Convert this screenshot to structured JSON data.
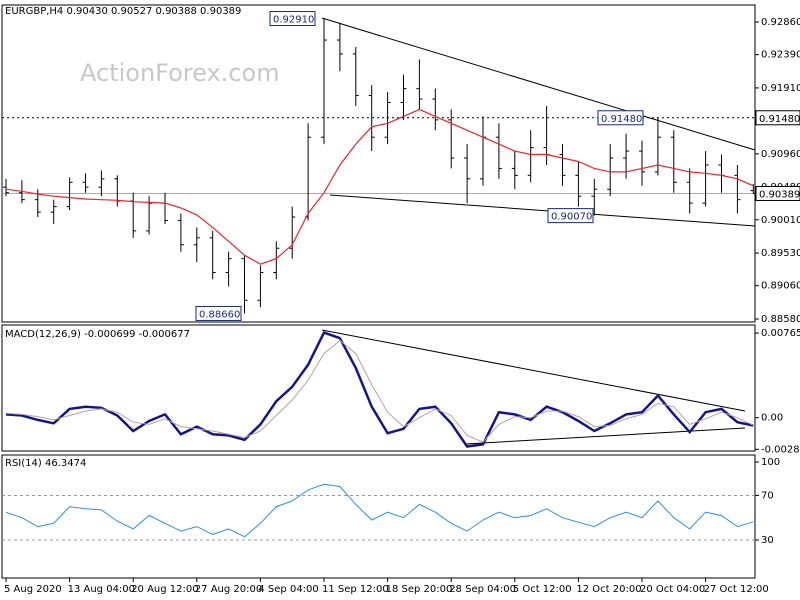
{
  "chart_data": [
    {
      "type": "ohlc",
      "title": "EURGBP,H4 0.90430 0.90527 0.90388 0.90389",
      "watermark": "ActionForex.com",
      "categories": [
        "5 Aug 2020",
        null,
        null,
        null,
        "13 Aug 04:00",
        null,
        null,
        null,
        "20 Aug 12:00",
        null,
        null,
        null,
        "27 Aug 20:00",
        null,
        null,
        null,
        "4 Sep 04:00",
        null,
        null,
        null,
        "11 Sep 12:00",
        null,
        null,
        null,
        "18 Sep 20:00",
        null,
        null,
        null,
        "28 Sep 04:00",
        null,
        null,
        null,
        "5 Oct 12:00",
        null,
        null,
        null,
        "12 Oct 20:00",
        null,
        null,
        null,
        "20 Oct 04:00",
        null,
        null,
        null,
        "27 Oct 12:00",
        null,
        null,
        null
      ],
      "open": [
        0.9048,
        0.904,
        0.903,
        0.9012,
        0.902,
        0.9055,
        0.9048,
        0.906,
        0.9028,
        0.8985,
        0.9025,
        0.9,
        0.8965,
        0.8975,
        0.8925,
        0.8945,
        0.8885,
        0.8925,
        0.896,
        0.9005,
        0.912,
        0.926,
        0.924,
        0.918,
        0.912,
        0.917,
        0.919,
        0.9175,
        0.9145,
        0.909,
        0.906,
        0.912,
        0.9075,
        0.9065,
        0.9105,
        0.9095,
        0.9065,
        0.9035,
        0.9045,
        0.909,
        0.91,
        0.907,
        0.912,
        0.9055,
        0.9025,
        0.908,
        0.9065,
        0.9043
      ],
      "high": [
        0.906,
        0.9058,
        0.9045,
        0.903,
        0.9062,
        0.9068,
        0.9072,
        0.9065,
        0.904,
        0.9035,
        0.904,
        0.901,
        0.899,
        0.8985,
        0.8955,
        0.895,
        0.8935,
        0.897,
        0.902,
        0.914,
        0.9291,
        0.9285,
        0.925,
        0.9195,
        0.9185,
        0.921,
        0.9232,
        0.919,
        0.916,
        0.911,
        0.915,
        0.914,
        0.91,
        0.913,
        0.9165,
        0.911,
        0.9085,
        0.906,
        0.911,
        0.9125,
        0.9115,
        0.9148,
        0.913,
        0.9075,
        0.91,
        0.9095,
        0.908,
        0.90527
      ],
      "low": [
        0.9035,
        0.9025,
        0.9005,
        0.8995,
        0.9015,
        0.904,
        0.9035,
        0.902,
        0.8975,
        0.898,
        0.8995,
        0.8955,
        0.894,
        0.8915,
        0.8905,
        0.8866,
        0.8875,
        0.8915,
        0.8945,
        0.9,
        0.911,
        0.9215,
        0.9165,
        0.91,
        0.911,
        0.9145,
        0.916,
        0.913,
        0.9075,
        0.9025,
        0.905,
        0.906,
        0.9045,
        0.9055,
        0.908,
        0.905,
        0.902,
        0.9007,
        0.9035,
        0.906,
        0.905,
        0.9065,
        0.904,
        0.901,
        0.902,
        0.904,
        0.901,
        0.90388
      ],
      "close": [
        0.904,
        0.903,
        0.9012,
        0.902,
        0.9055,
        0.9048,
        0.906,
        0.9028,
        0.8985,
        0.9025,
        0.9,
        0.8965,
        0.8975,
        0.8925,
        0.8945,
        0.8885,
        0.8925,
        0.896,
        0.9005,
        0.912,
        0.926,
        0.924,
        0.918,
        0.912,
        0.917,
        0.919,
        0.9175,
        0.9145,
        0.909,
        0.906,
        0.912,
        0.9075,
        0.9065,
        0.9105,
        0.9095,
        0.9065,
        0.9035,
        0.9045,
        0.909,
        0.91,
        0.907,
        0.912,
        0.9055,
        0.9025,
        0.908,
        0.9065,
        0.903,
        0.90389
      ],
      "bar_color": "#000000",
      "series": [
        {
          "color": "#e8262b",
          "values": [
            0.9045,
            0.9042,
            0.9038,
            0.9035,
            0.9033,
            0.9031,
            0.903,
            0.9029,
            0.9027,
            0.9026,
            0.9025,
            0.9018,
            0.9008,
            0.899,
            0.897,
            0.895,
            0.8937,
            0.8945,
            0.8965,
            0.901,
            0.904,
            0.908,
            0.911,
            0.9135,
            0.914,
            0.915,
            0.916,
            0.915,
            0.914,
            0.913,
            0.912,
            0.911,
            0.91,
            0.9095,
            0.9095,
            0.909,
            0.9085,
            0.9075,
            0.907,
            0.907,
            0.9075,
            0.908,
            0.9075,
            0.907,
            0.9068,
            0.9065,
            0.906,
            0.905
          ]
        }
      ],
      "ylim": [
        0.88537,
        0.93105
      ],
      "yticks": [
        {
          "value": 0.9286,
          "label": "0.92860"
        },
        {
          "value": 0.9239,
          "label": "0.92390"
        },
        {
          "value": 0.9191,
          "label": "0.91910"
        },
        {
          "value": 0.9144,
          "label": "0.91440"
        },
        {
          "value": 0.9096,
          "label": "0.90960"
        },
        {
          "value": 0.9048,
          "label": "0.90480"
        },
        {
          "value": 0.9001,
          "label": "0.90010"
        },
        {
          "value": 0.8953,
          "label": "0.89530"
        },
        {
          "value": 0.8906,
          "label": "0.89060"
        },
        {
          "value": 0.8858,
          "label": "0.88580"
        }
      ],
      "last_price": {
        "value": 0.90389,
        "label": "0.90389"
      },
      "level": {
        "value": 0.9148,
        "label": "0.91480"
      },
      "annotations": [
        {
          "value": 0.9291,
          "label": "0.92910"
        },
        {
          "value": 0.9148,
          "label": "0.91480"
        },
        {
          "value": 0.9007,
          "label": "0.90070"
        },
        {
          "value": 0.8866,
          "label": "0.88660"
        }
      ]
    },
    {
      "type": "line",
      "title": "MACD(12,26,9) -0.000699 -0.000677",
      "series": [
        {
          "color": "#15158a",
          "values": [
            0.0003,
            0.0002,
            -0.0002,
            -0.0005,
            0.0008,
            0.001,
            0.0009,
            0.0002,
            -0.0012,
            -0.0003,
            0.0003,
            -0.0015,
            -0.0008,
            -0.0015,
            -0.0016,
            -0.002,
            -0.0006,
            0.0015,
            0.0028,
            0.0048,
            0.0077,
            0.0072,
            0.0045,
            0.001,
            -0.0014,
            -0.001,
            0.0008,
            0.001,
            -0.0005,
            -0.0026,
            -0.0024,
            0.0005,
            0.0003,
            -0.0002,
            0.001,
            0.0005,
            -0.0003,
            -0.0012,
            -0.0005,
            0.0003,
            0.0005,
            0.002,
            0.0003,
            -0.0013,
            0.0005,
            0.0008,
            -0.0004,
            -0.000699
          ]
        },
        {
          "color": "#b8a0a8",
          "values": [
            0.0004,
            0.0003,
            0.0001,
            -0.0002,
            0.0002,
            0.0006,
            0.0008,
            0.0005,
            -0.0004,
            -0.0006,
            -0.0001,
            -0.0008,
            -0.001,
            -0.0012,
            -0.0015,
            -0.0018,
            -0.0012,
            0.0002,
            0.0016,
            0.0034,
            0.0058,
            0.007,
            0.0058,
            0.003,
            0.0005,
            -0.0008,
            0.0,
            0.0008,
            0.0002,
            -0.0016,
            -0.0022,
            -0.0006,
            0.0001,
            0.0,
            0.0006,
            0.0006,
            0.0001,
            -0.0008,
            -0.0007,
            -0.0001,
            0.0003,
            0.0013,
            0.001,
            -0.0006,
            -0.0001,
            0.0005,
            0.0,
            -0.000677
          ]
        }
      ],
      "ylim": [
        -0.00301,
        0.00839
      ],
      "yticks": [
        0.007659,
        {
          "value": 0,
          "label": "0.00"
        },
        -0.002855
      ]
    },
    {
      "type": "line",
      "title": "RSI(14) 46.3474",
      "series": [
        {
          "color": "#2b8fe0",
          "values": [
            55,
            50,
            42,
            45,
            60,
            58,
            57,
            47,
            40,
            52,
            45,
            38,
            42,
            35,
            40,
            33,
            45,
            60,
            65,
            75,
            80,
            78,
            62,
            48,
            55,
            50,
            62,
            55,
            45,
            38,
            48,
            55,
            50,
            52,
            58,
            50,
            46,
            42,
            50,
            55,
            50,
            65,
            50,
            40,
            55,
            52,
            42,
            46.3474
          ]
        }
      ],
      "ylim": [
        -4.1,
        106.3
      ],
      "yticks": [
        100,
        70,
        30
      ],
      "grid": [
        70,
        30
      ]
    }
  ]
}
